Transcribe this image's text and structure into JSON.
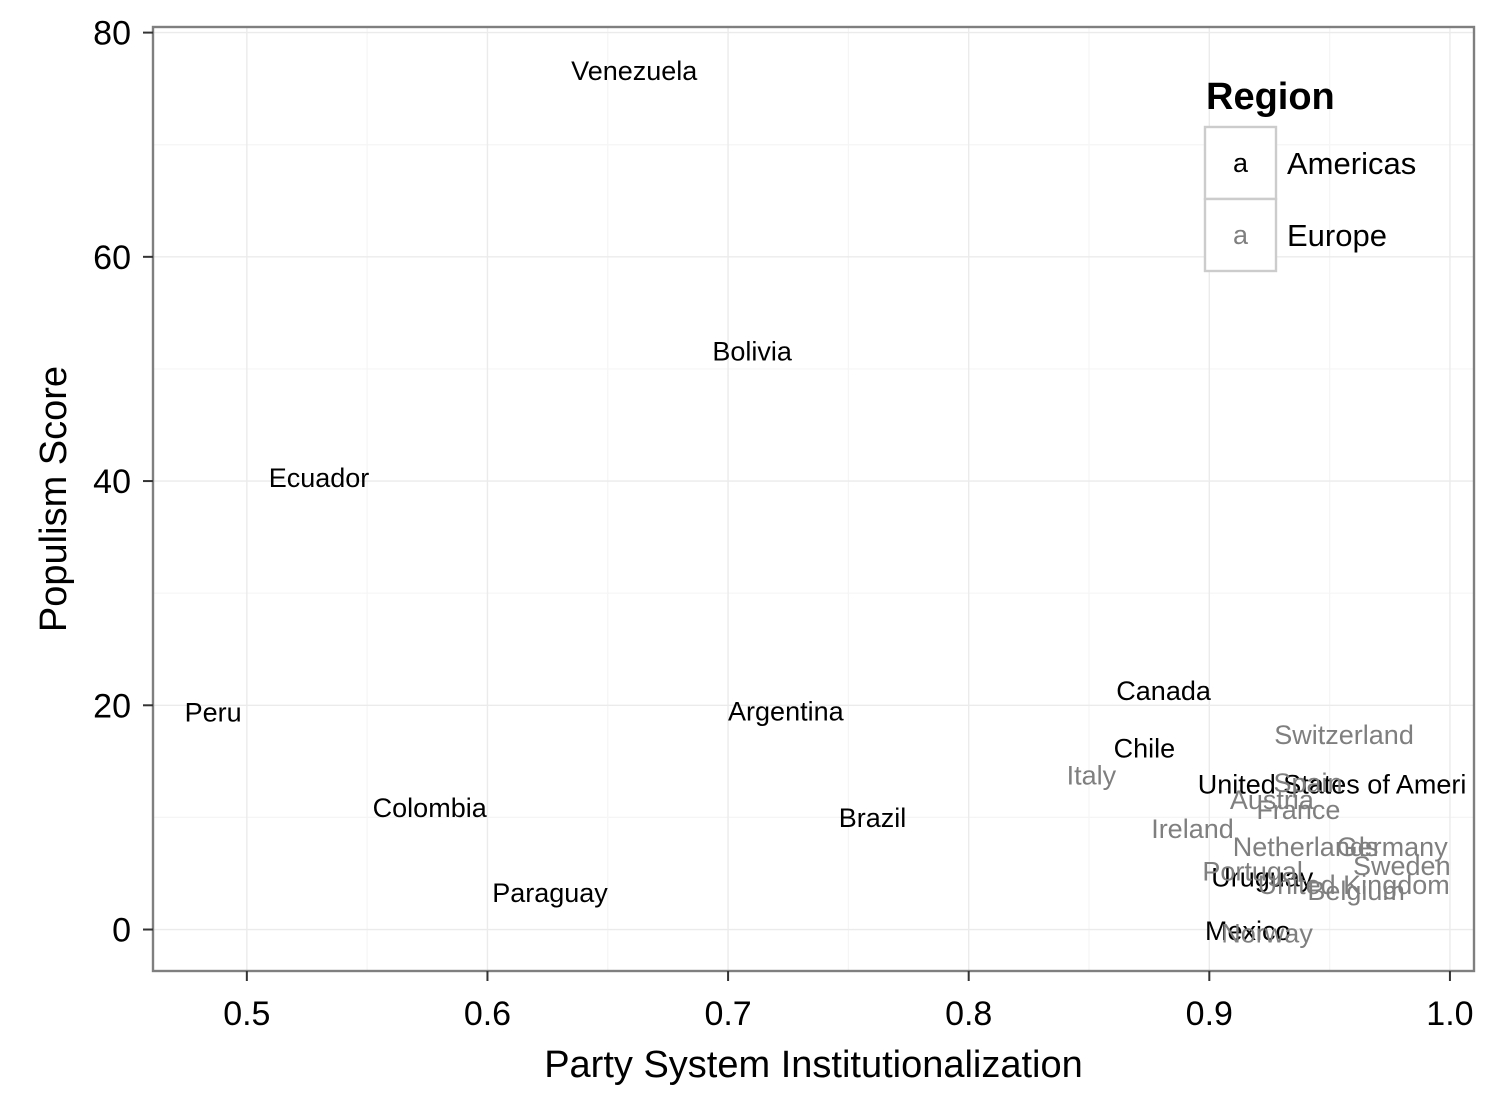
{
  "chart_data": {
    "type": "scatter",
    "xlabel": "Party System Institutionalization",
    "ylabel": "Populism Score",
    "xlim": [
      0.461,
      1.01
    ],
    "ylim": [
      -3.7,
      80.5
    ],
    "x_ticks": [
      0.5,
      0.6,
      0.7,
      0.8,
      0.9,
      1.0
    ],
    "x_tick_labels": [
      "0.5",
      "0.6",
      "0.7",
      "0.8",
      "0.9",
      "1.0"
    ],
    "y_ticks": [
      0,
      20,
      40,
      60,
      80
    ],
    "y_tick_labels": [
      "0",
      "20",
      "40",
      "60",
      "80"
    ],
    "grid": true,
    "legend": {
      "title": "Region",
      "position": "top-right",
      "key_glyph": "a",
      "entries": [
        {
          "name": "Americas",
          "color": "#000000"
        },
        {
          "name": "Europe",
          "color": "#7f7f7f"
        }
      ]
    },
    "series": [
      {
        "name": "Americas",
        "color": "#000000",
        "points": [
          {
            "label": "Venezuela",
            "x": 0.661,
            "y": 76.6
          },
          {
            "label": "Bolivia",
            "x": 0.71,
            "y": 51.6
          },
          {
            "label": "Ecuador",
            "x": 0.53,
            "y": 40.3
          },
          {
            "label": "Peru",
            "x": 0.486,
            "y": 19.4
          },
          {
            "label": "Argentina",
            "x": 0.724,
            "y": 19.5
          },
          {
            "label": "Colombia",
            "x": 0.576,
            "y": 10.9
          },
          {
            "label": "Brazil",
            "x": 0.76,
            "y": 10.0
          },
          {
            "label": "Paraguay",
            "x": 0.626,
            "y": 3.3
          },
          {
            "label": "Canada",
            "x": 0.881,
            "y": 21.3
          },
          {
            "label": "Chile",
            "x": 0.873,
            "y": 16.2
          },
          {
            "label": "United States of Ameri",
            "x": 0.951,
            "y": 13.0
          },
          {
            "label": "Uruguay",
            "x": 0.922,
            "y": 4.7
          },
          {
            "label": "Mexico",
            "x": 0.916,
            "y": -0.1
          }
        ]
      },
      {
        "name": "Europe",
        "color": "#7f7f7f",
        "points": [
          {
            "label": "Switzerland",
            "x": 0.956,
            "y": 17.4
          },
          {
            "label": "Italy",
            "x": 0.851,
            "y": 13.8
          },
          {
            "label": "Spain",
            "x": 0.941,
            "y": 13.1
          },
          {
            "label": "Austria",
            "x": 0.926,
            "y": 11.6
          },
          {
            "label": "France",
            "x": 0.937,
            "y": 10.7
          },
          {
            "label": "Ireland",
            "x": 0.893,
            "y": 9.0
          },
          {
            "label": "Netherlands",
            "x": 0.94,
            "y": 7.4
          },
          {
            "label": "Germany",
            "x": 0.976,
            "y": 7.4
          },
          {
            "label": "Sweden",
            "x": 0.98,
            "y": 5.7
          },
          {
            "label": "Portugal",
            "x": 0.918,
            "y": 5.2
          },
          {
            "label": "United Kingdom",
            "x": 0.96,
            "y": 4.0
          },
          {
            "label": "Belgium",
            "x": 0.961,
            "y": 3.5
          },
          {
            "label": "Norway",
            "x": 0.924,
            "y": -0.3
          }
        ]
      }
    ]
  }
}
